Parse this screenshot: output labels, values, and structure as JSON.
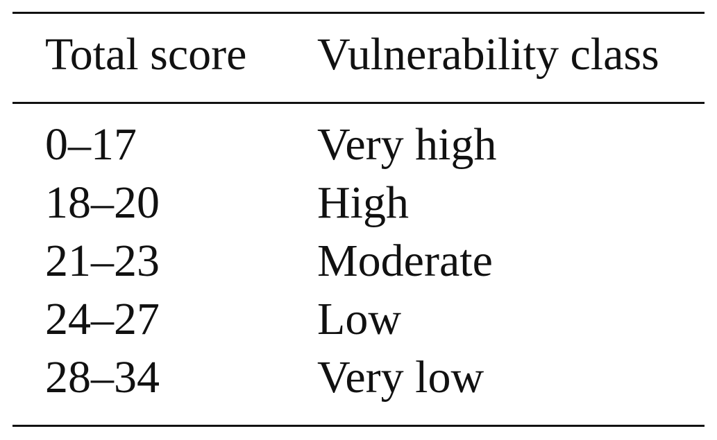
{
  "table": {
    "columns": [
      "Total score",
      "Vulnerability class"
    ],
    "rows": [
      [
        "0–17",
        "Very high"
      ],
      [
        "18–20",
        "High"
      ],
      [
        "21–23",
        "Moderate"
      ],
      [
        "24–27",
        "Low"
      ],
      [
        "28–34",
        "Very low"
      ]
    ]
  }
}
